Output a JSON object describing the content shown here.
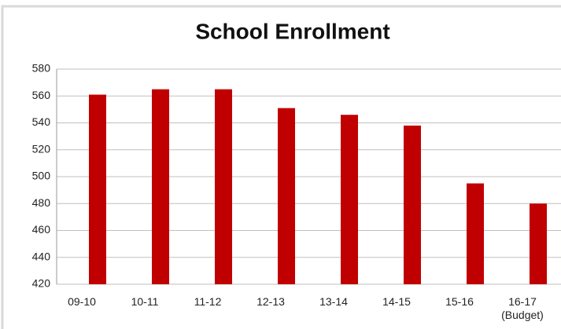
{
  "chart_data": {
    "type": "bar",
    "title": "School Enrollment",
    "categories": [
      "09-10",
      "10-11",
      "11-12",
      "12-13",
      "13-14",
      "14-15",
      "15-16",
      "16-17\n(Budget)"
    ],
    "values": [
      561,
      565,
      565,
      551,
      546,
      538,
      495,
      480
    ],
    "color": "#c00000",
    "ylim": [
      420,
      580
    ],
    "yticks": [
      420,
      440,
      460,
      480,
      500,
      520,
      540,
      560,
      580
    ],
    "grid": true
  }
}
